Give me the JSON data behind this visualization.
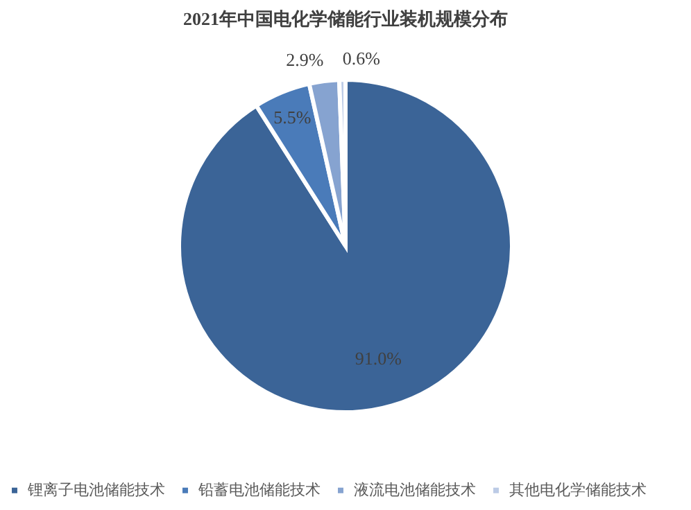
{
  "chart_data": {
    "type": "pie",
    "title": "2021年中国电化学储能行业装机规模分布",
    "categories": [
      "锂离子电池储能技术",
      "铅蓄电池储能技术",
      "液流电池储能技术",
      "其他电化学储能技术"
    ],
    "values": [
      91.0,
      5.5,
      2.9,
      0.6
    ],
    "colors": [
      "#3b6497",
      "#4a7bb9",
      "#86a3d0",
      "#bccbe6"
    ],
    "value_labels": [
      "91.0%",
      "5.5%",
      "2.9%",
      "0.6%"
    ],
    "legend": "bottom"
  }
}
